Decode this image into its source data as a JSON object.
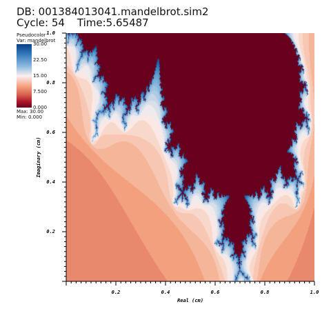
{
  "header": {
    "db": "DB: 001384013041.mandelbrot.sim2",
    "cycle": "Cycle: 54",
    "time": "Time:5.65487"
  },
  "legend": {
    "plot_type": "Pseudocolor",
    "var": "Var: mandelbrot",
    "ticks": [
      "30.00",
      "22.50",
      "15.00",
      "7.500",
      "0.000"
    ],
    "max": "Max: 30.00",
    "min": "Min: 0.000",
    "colors": [
      "#0a3f86",
      "#2e73b6",
      "#8cbbe0",
      "#fbf0ef",
      "#f4a582",
      "#d6604d",
      "#b2182b",
      "#67001f"
    ]
  },
  "chart_data": {
    "type": "heatmap",
    "xlabel": "Real (cm)",
    "ylabel": "Imaginary (cm)",
    "xlim": [
      0.0,
      1.0
    ],
    "ylim": [
      0.0,
      1.0
    ],
    "x_ticks": [
      "0.2",
      "0.4",
      "0.6",
      "0.8",
      "1.0"
    ],
    "x_tick_values": [
      0.2,
      0.4,
      0.6,
      0.8,
      1.0
    ],
    "y_ticks": [
      "0.2",
      "0.4",
      "0.6",
      "0.8",
      "1.0"
    ],
    "y_tick_values": [
      0.2,
      0.4,
      0.6,
      0.8,
      1.0
    ],
    "value_range": [
      0.0,
      30.0
    ],
    "field": "mandelbrot",
    "domain_re": [
      -1.5,
      0.5
    ],
    "domain_im": [
      -1.0,
      0.0
    ]
  }
}
